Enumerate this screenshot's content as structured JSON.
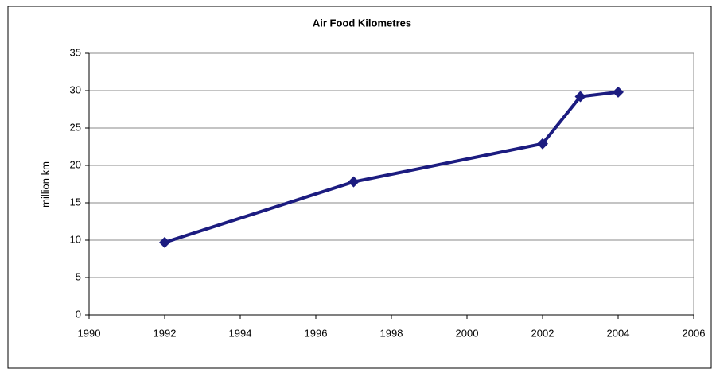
{
  "chart_data": {
    "type": "line",
    "title": "Air Food Kilometres",
    "y_label": "million km",
    "x": [
      1992,
      1997,
      2002,
      2003,
      2004
    ],
    "series": [
      {
        "name": "Air Food Kilometres",
        "color": "#1c1c80",
        "values": [
          9.7,
          17.8,
          22.9,
          29.2,
          29.8
        ]
      }
    ],
    "xlim": [
      1990,
      2006
    ],
    "xticks": [
      1990,
      1992,
      1994,
      1996,
      1998,
      2000,
      2002,
      2004,
      2006
    ],
    "ylim": [
      0,
      35
    ],
    "yticks": [
      0,
      5,
      10,
      15,
      20,
      25,
      30,
      35
    ],
    "grid": true
  }
}
